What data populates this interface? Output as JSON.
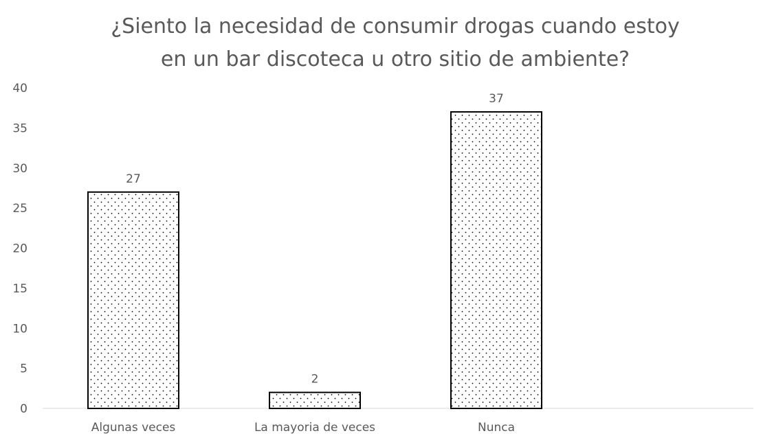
{
  "chart_data": {
    "type": "bar",
    "title_lines": [
      "¿Siento la necesidad de consumir drogas  cuando estoy",
      "en un bar discoteca u otro sitio de ambiente?"
    ],
    "xlabel": "",
    "ylabel": "",
    "categories": [
      "Algunas veces",
      "La mayoria de veces",
      "Nunca"
    ],
    "values": [
      27,
      2,
      37
    ],
    "data_labels": [
      "27",
      "2",
      "37"
    ],
    "ylim": [
      0,
      40
    ],
    "yticks": [
      0,
      5,
      10,
      15,
      20,
      25,
      30,
      35,
      40
    ],
    "gridlines": false,
    "legend": "none",
    "bar_fill": "dotted-pattern",
    "colors": {
      "bar_border": "#000000",
      "bar_dots": "#000000",
      "text": "#595959",
      "axis_line": "#d9d9d9"
    }
  }
}
